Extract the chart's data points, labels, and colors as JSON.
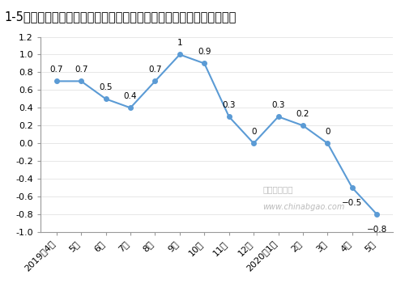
{
  "title": "1-5月泵、阀门、压缩机及类似机械制造工业生产者出厂价格指数同比涨",
  "x_labels": [
    "2019年4月",
    "5月",
    "6月",
    "7月",
    "8月",
    "9月",
    "10月",
    "11月",
    "12月",
    "2020年1月",
    "2月",
    "3月",
    "4月",
    "5月"
  ],
  "y_values": [
    0.7,
    0.7,
    0.5,
    0.4,
    0.7,
    1.0,
    0.9,
    0.3,
    0.0,
    0.3,
    0.2,
    0.0,
    -0.5,
    -0.8
  ],
  "ylim": [
    -1,
    1.2
  ],
  "yticks": [
    -1,
    -0.8,
    -0.6,
    -0.4,
    -0.2,
    0,
    0.2,
    0.4,
    0.6,
    0.8,
    1.0,
    1.2
  ],
  "line_color": "#5B9BD5",
  "marker_color": "#5B9BD5",
  "bg_color": "#FFFFFF",
  "plot_bg_color": "#FFFFFF",
  "title_fontsize": 10.5,
  "tick_fontsize": 8,
  "annotation_fontsize": 7.5,
  "watermark_line1": "中国报告大厅",
  "watermark_line2": "www.chinabgao.com",
  "annotations": [
    "0.7",
    "0.7",
    "0.5",
    "0.4",
    "0.7",
    "1",
    "0.9",
    "0.3",
    "0",
    "0.3",
    "0.2",
    "0",
    "−0.5",
    "−0.8"
  ],
  "annot_above": [
    true,
    true,
    true,
    true,
    true,
    true,
    true,
    true,
    true,
    true,
    true,
    true,
    false,
    false
  ]
}
